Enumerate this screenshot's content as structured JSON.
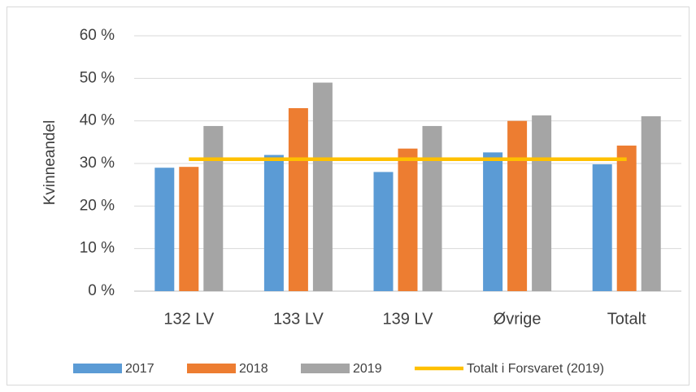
{
  "chart_data": {
    "type": "bar",
    "y_label": "Kvinneandel",
    "categories": [
      "132 LV",
      "133 LV",
      "139 LV",
      "Øvrige",
      "Totalt"
    ],
    "series": [
      {
        "name": "2017",
        "color": "#5b9bd5",
        "values": [
          29,
          32,
          28,
          32.6,
          29.8
        ]
      },
      {
        "name": "2018",
        "color": "#ed7d31",
        "values": [
          29.2,
          43,
          33.5,
          40,
          34.2
        ]
      },
      {
        "name": "2019",
        "color": "#a5a5a5",
        "values": [
          38.8,
          49,
          38.8,
          41.3,
          41.1
        ]
      },
      {
        "name": "Totalt i Forsvaret (2019)",
        "color": "#ffc000",
        "type": "line",
        "values": [
          31,
          31,
          31,
          31,
          31
        ]
      }
    ],
    "ylim": [
      0,
      60
    ],
    "yticks": [
      {
        "value": 0,
        "label": "0 %"
      },
      {
        "value": 10,
        "label": "10 %"
      },
      {
        "value": 20,
        "label": "20 %"
      },
      {
        "value": 30,
        "label": "30 %"
      },
      {
        "value": 40,
        "label": "40 %"
      },
      {
        "value": 50,
        "label": "50 %"
      },
      {
        "value": 60,
        "label": "60 %"
      }
    ],
    "grid": true,
    "legend": "bottom"
  }
}
